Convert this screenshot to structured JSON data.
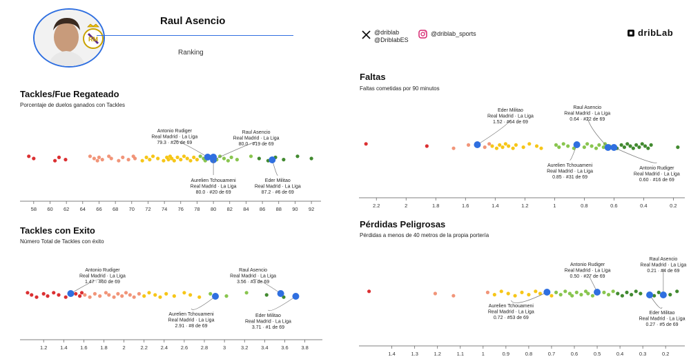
{
  "header": {
    "player_name": "Raul Asencio",
    "ranking_label": "Ranking",
    "social": {
      "x_handle_1": "@driblab",
      "x_handle_2": "@DriblabES",
      "instagram_handle": "@driblab_sports"
    },
    "brand": "dribLab"
  },
  "colors": {
    "highlight": "#2f6fe0",
    "scale": [
      "#d7191c",
      "#f08a6a",
      "#f5c000",
      "#7cbf3c",
      "#2e7d1a"
    ]
  },
  "chart_data": [
    {
      "type": "scatter",
      "id": "tackles-regateado",
      "title": "Tackles/Fue Regateado",
      "subtitle": "Porcentaje de duelos ganados con Tackles",
      "xlim": [
        57,
        92.5
      ],
      "ticks": [
        58,
        60,
        62,
        64,
        66,
        68,
        70,
        72,
        74,
        76,
        78,
        80,
        82,
        84,
        86,
        88,
        90,
        92
      ],
      "reversed": false,
      "population": [
        57.4,
        58.0,
        60.6,
        61.1,
        61.9,
        64.9,
        65.4,
        65.8,
        66.0,
        66.4,
        67.2,
        67.5,
        68.4,
        68.9,
        69.6,
        70.2,
        70.4,
        71.3,
        71.8,
        72.2,
        72.6,
        73.2,
        73.9,
        74.3,
        74.5,
        74.7,
        74.9,
        75.2,
        75.6,
        76.0,
        76.4,
        76.8,
        77.2,
        77.6,
        78.0,
        78.4,
        78.8,
        79.0,
        79.6,
        80.4,
        80.8,
        81.3,
        81.8,
        82.2,
        82.9,
        84.6,
        85.6,
        86.7,
        87.6,
        88.6,
        90.3,
        92.0
      ],
      "players": [
        {
          "name": "Antonio Rudiger",
          "team": "Real Madrid · La Liga",
          "value": 79.3,
          "rank_text": "79.3 · #26 de 69"
        },
        {
          "name": "Raul Asencio",
          "team": "Real Madrid · La Liga",
          "value": 80.0,
          "rank_text": "80.0 · #19 de 69"
        },
        {
          "name": "Aurelien Tchouameni",
          "team": "Real Madrid · La Liga",
          "value": 80.0,
          "rank_text": "80.0 · #20 de 69"
        },
        {
          "name": "Eder Militao",
          "team": "Real Madrid · La Liga",
          "value": 87.2,
          "rank_text": "87.2 · #6 de 69"
        }
      ]
    },
    {
      "type": "scatter",
      "id": "tackles-exito",
      "title": "Tackles con Exito",
      "subtitle": "Número Total de Tackles con éxito",
      "xlim": [
        1.02,
        3.92
      ],
      "ticks": [
        1.2,
        1.4,
        1.6,
        1.8,
        2,
        2.2,
        2.4,
        2.6,
        2.8,
        3,
        3.2,
        3.4,
        3.6,
        3.8
      ],
      "reversed": false,
      "population": [
        1.04,
        1.08,
        1.13,
        1.2,
        1.24,
        1.3,
        1.35,
        1.42,
        1.52,
        1.56,
        1.58,
        1.61,
        1.66,
        1.71,
        1.76,
        1.82,
        1.85,
        1.9,
        1.94,
        1.98,
        2.02,
        2.06,
        2.1,
        2.15,
        2.2,
        2.25,
        2.31,
        2.36,
        2.42,
        2.5,
        2.6,
        2.66,
        2.75,
        2.86,
        3.02,
        3.22,
        3.42,
        3.59
      ],
      "players": [
        {
          "name": "Antonio Rudiger",
          "team": "Real Madrid · La Liga",
          "value": 1.47,
          "rank_text": "1.47 · #60 de 69"
        },
        {
          "name": "Aurelien Tchouameni",
          "team": "Real Madrid · La Liga",
          "value": 2.91,
          "rank_text": "2.91 · #8 de 69"
        },
        {
          "name": "Raul Asencio",
          "team": "Real Madrid · La Liga",
          "value": 3.56,
          "rank_text": "3.56 · #3 de 69"
        },
        {
          "name": "Eder Militao",
          "team": "Real Madrid · La Liga",
          "value": 3.71,
          "rank_text": "3.71 · #1 de 69"
        }
      ]
    },
    {
      "type": "scatter",
      "id": "faltas",
      "title": "Faltas",
      "subtitle": "Faltas cometidas por 90 minutos",
      "xlim": [
        2.28,
        0.16
      ],
      "ticks": [
        2.2,
        2,
        1.8,
        1.6,
        1.4,
        1.2,
        1,
        0.8,
        0.6,
        0.4,
        0.2
      ],
      "reversed": true,
      "population": [
        2.27,
        1.86,
        1.68,
        1.58,
        1.47,
        1.44,
        1.42,
        1.39,
        1.37,
        1.35,
        1.33,
        1.31,
        1.28,
        1.26,
        1.21,
        1.17,
        1.12,
        1.09,
        0.99,
        0.97,
        0.94,
        0.91,
        0.87,
        0.84,
        0.8,
        0.78,
        0.75,
        0.72,
        0.7,
        0.67,
        0.66,
        0.63,
        0.58,
        0.55,
        0.53,
        0.51,
        0.49,
        0.47,
        0.45,
        0.43,
        0.41,
        0.39,
        0.37,
        0.35,
        0.17
      ],
      "players": [
        {
          "name": "Eder Militao",
          "team": "Real Madrid · La Liga",
          "value": 1.52,
          "rank_text": "1.52 · #64 de 69"
        },
        {
          "name": "Raul Asencio",
          "team": "Real Madrid · La Liga",
          "value": 0.64,
          "rank_text": "0.64 · #22 de 69"
        },
        {
          "name": "Aurelien Tchouameni",
          "team": "Real Madrid · La Liga",
          "value": 0.85,
          "rank_text": "0.85 · #31 de 69"
        },
        {
          "name": "Antonio Rudiger",
          "team": "Real Madrid · La Liga",
          "value": 0.6,
          "rank_text": "0.60 · #16 de 69"
        }
      ]
    },
    {
      "type": "scatter",
      "id": "perdidas",
      "title": "Pérdidas Peligrosas",
      "subtitle": "Pérdidas a menos de 40 metros de la propia portería",
      "xlim": [
        1.52,
        0.14
      ],
      "ticks": [
        1.4,
        1.3,
        1.2,
        1.1,
        1,
        0.9,
        0.8,
        0.7,
        0.6,
        0.5,
        0.4,
        0.3,
        0.2
      ],
      "reversed": true,
      "population": [
        1.5,
        1.21,
        1.13,
        0.98,
        0.95,
        0.92,
        0.89,
        0.86,
        0.83,
        0.8,
        0.77,
        0.75,
        0.7,
        0.68,
        0.66,
        0.64,
        0.62,
        0.61,
        0.59,
        0.57,
        0.55,
        0.54,
        0.52,
        0.47,
        0.45,
        0.43,
        0.41,
        0.39,
        0.37,
        0.35,
        0.33,
        0.31,
        0.25,
        0.23,
        0.18,
        0.15
      ],
      "players": [
        {
          "name": "Antonio Rudiger",
          "team": "Real Madrid · La Liga",
          "value": 0.5,
          "rank_text": "0.50 · #27 de 69"
        },
        {
          "name": "Raul Asencio",
          "team": "Real Madrid · La Liga",
          "value": 0.21,
          "rank_text": "0.21 · #4 de 69"
        },
        {
          "name": "Aurelien Tchouameni",
          "team": "Real Madrid · La Liga",
          "value": 0.72,
          "rank_text": "0.72 · #53 de 69"
        },
        {
          "name": "Eder Militao",
          "team": "Real Madrid · La Liga",
          "value": 0.27,
          "rank_text": "0.27 · #5 de 69"
        }
      ]
    }
  ]
}
